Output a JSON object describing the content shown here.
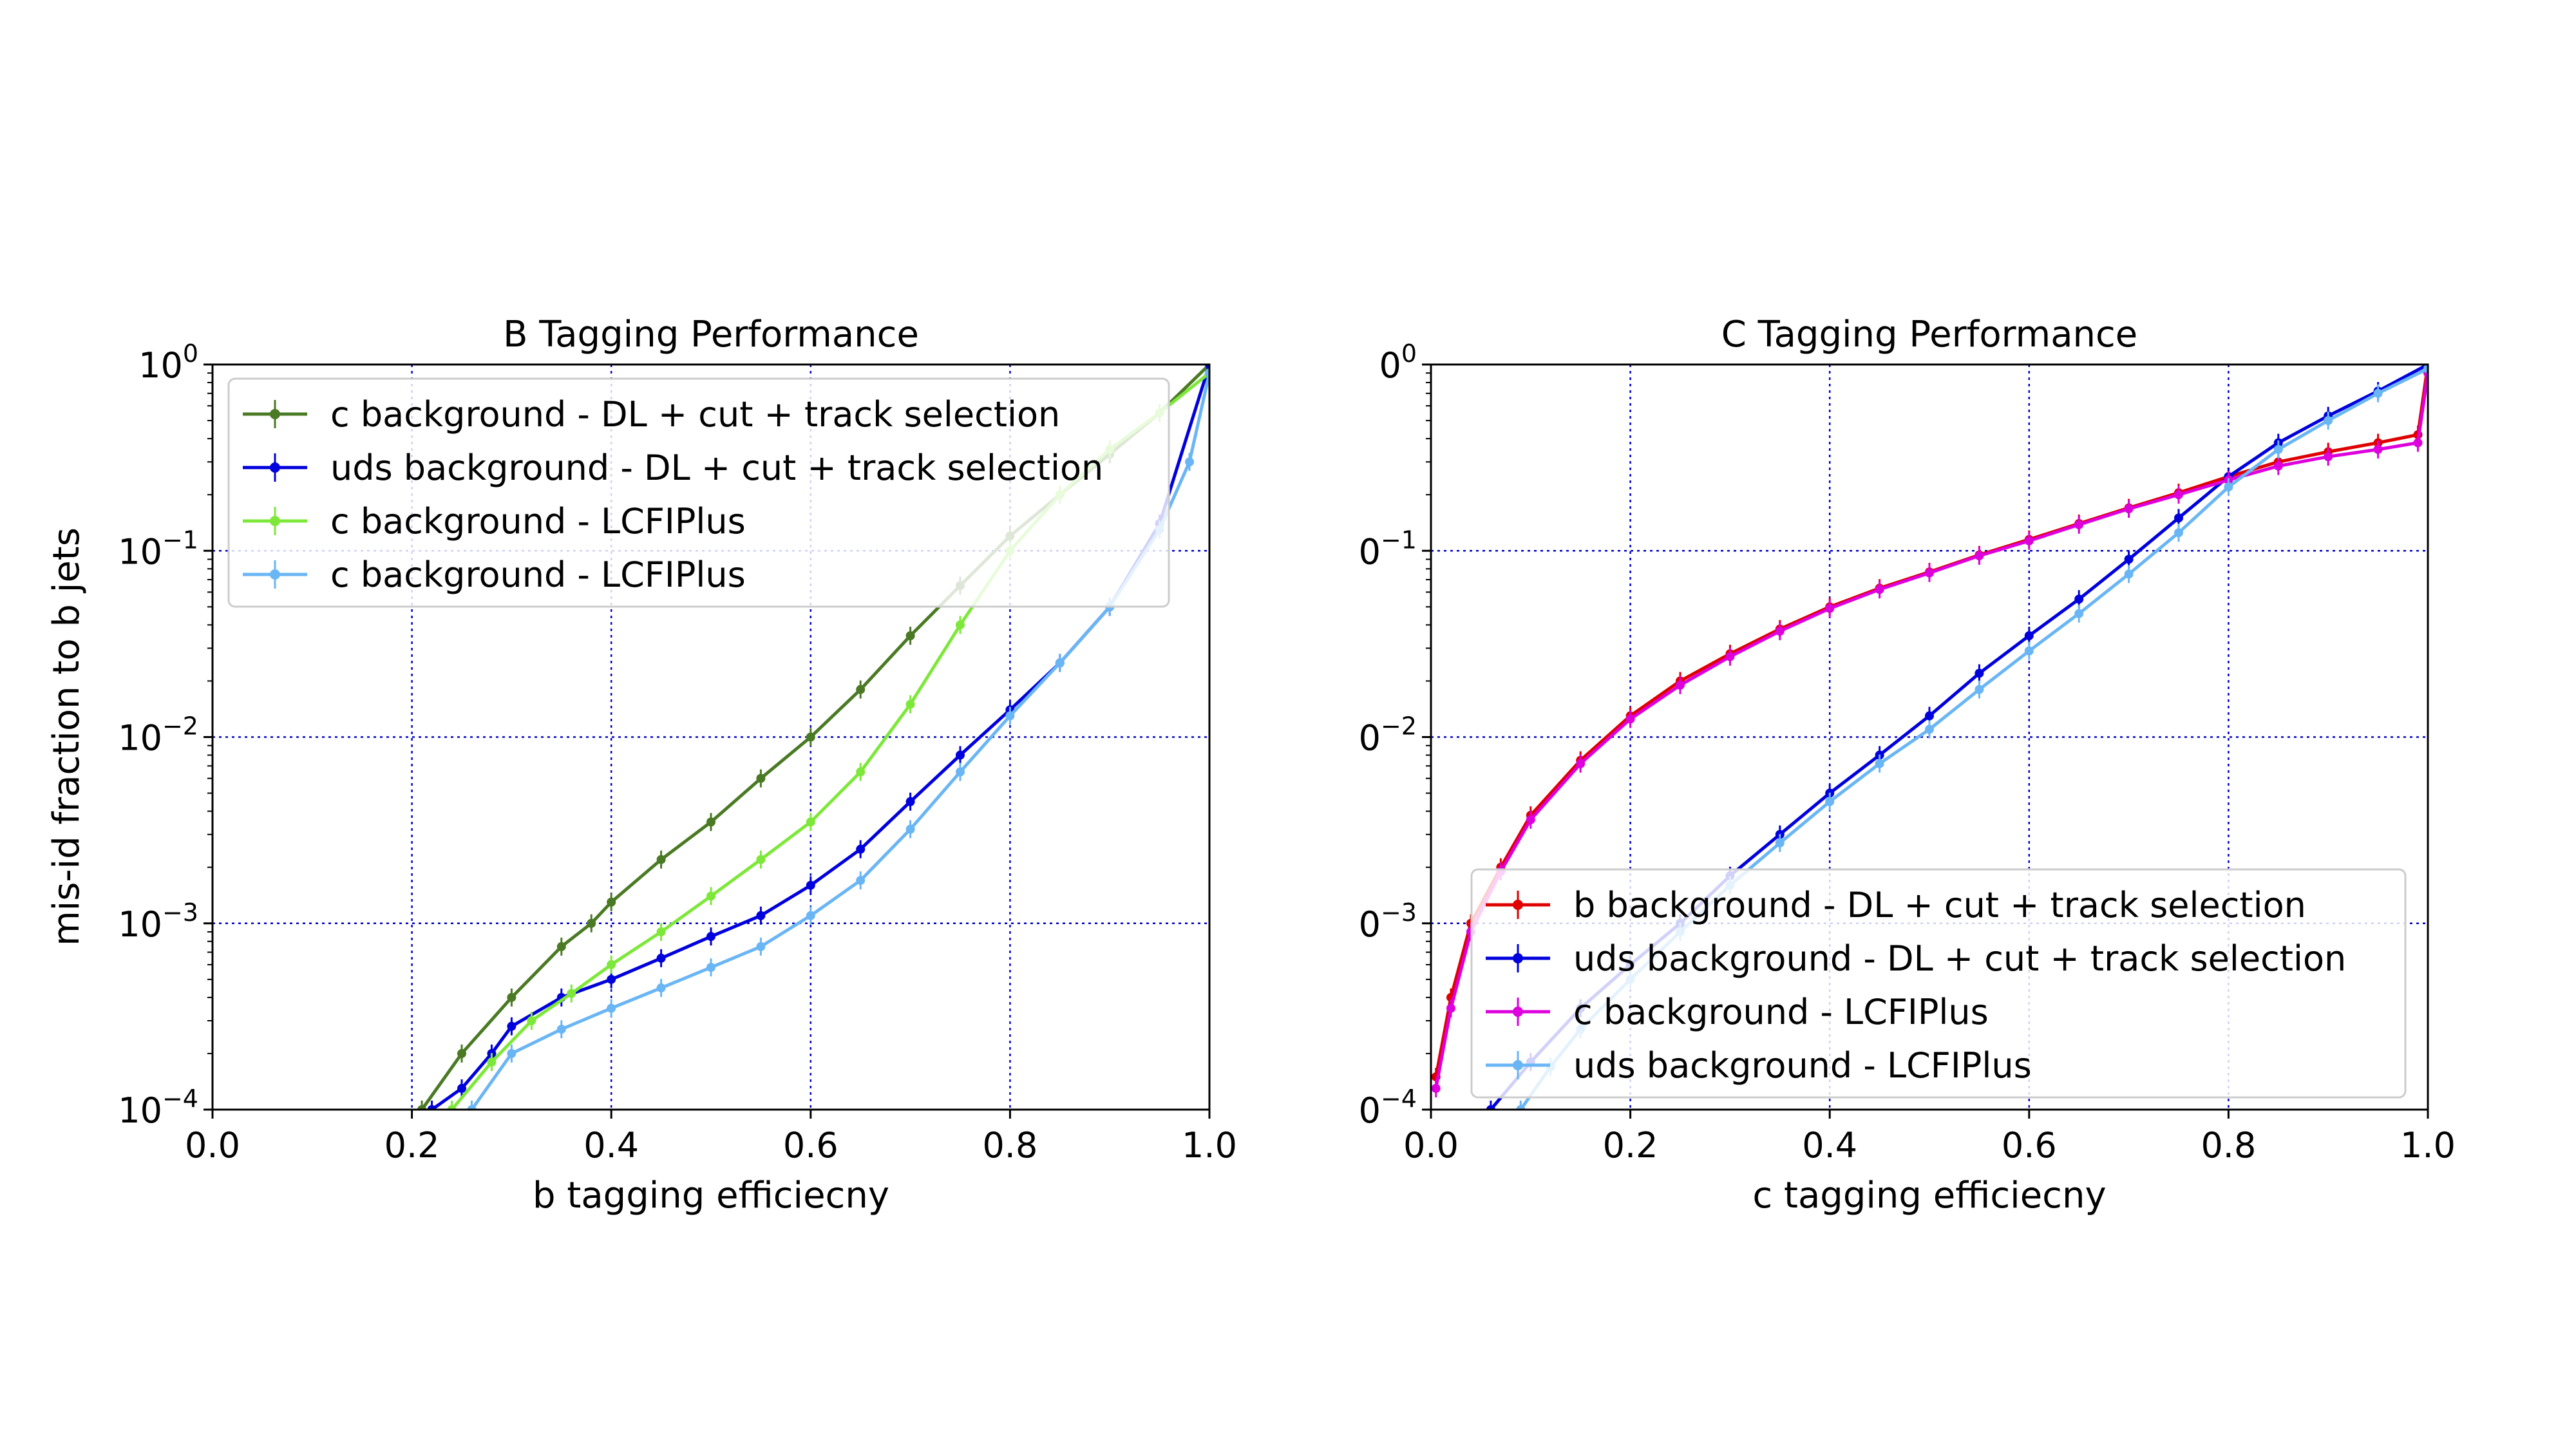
{
  "chart_data": [
    {
      "type": "line",
      "title": "B Tagging Performance",
      "xlabel": "b tagging efficiecny",
      "ylabel": "mis-id fraction to b jets",
      "xlim": [
        0.0,
        1.0
      ],
      "ylim": [
        0.0001,
        1
      ],
      "yscale": "log",
      "grid": true,
      "legend_position": "upper-left",
      "xticks": [
        "0.0",
        "0.2",
        "0.4",
        "0.6",
        "0.8",
        "1.0"
      ],
      "yticks": [
        {
          "base": "10",
          "exp": "0"
        },
        {
          "base": "10",
          "exp": "−1"
        },
        {
          "base": "10",
          "exp": "−2"
        },
        {
          "base": "10",
          "exp": "−3"
        },
        {
          "base": "10",
          "exp": "−4"
        }
      ],
      "series": [
        {
          "name": "c background - DL + cut + track selection",
          "color": "#4a7a23",
          "x": [
            0.21,
            0.25,
            0.3,
            0.35,
            0.38,
            0.4,
            0.45,
            0.5,
            0.55,
            0.6,
            0.65,
            0.7,
            0.75,
            0.8,
            0.85,
            0.9,
            0.95,
            1.0
          ],
          "y": [
            0.0001,
            0.0002,
            0.0004,
            0.00075,
            0.001,
            0.0013,
            0.0022,
            0.0035,
            0.006,
            0.01,
            0.018,
            0.035,
            0.065,
            0.12,
            0.2,
            0.33,
            0.55,
            1.0
          ]
        },
        {
          "name": "uds background - DL + cut + track selection",
          "color": "#0000dd",
          "x": [
            0.22,
            0.25,
            0.28,
            0.3,
            0.35,
            0.4,
            0.45,
            0.5,
            0.55,
            0.6,
            0.65,
            0.7,
            0.75,
            0.8,
            0.85,
            0.9,
            0.95,
            1.0
          ],
          "y": [
            0.0001,
            0.00013,
            0.0002,
            0.00028,
            0.0004,
            0.0005,
            0.00065,
            0.00085,
            0.0011,
            0.0016,
            0.0025,
            0.0045,
            0.008,
            0.014,
            0.025,
            0.05,
            0.14,
            1.0
          ]
        },
        {
          "name": "c background - LCFIPlus",
          "color": "#7ee83a",
          "x": [
            0.24,
            0.28,
            0.32,
            0.36,
            0.4,
            0.45,
            0.5,
            0.55,
            0.6,
            0.65,
            0.7,
            0.75,
            0.8,
            0.85,
            0.9,
            0.95,
            1.0
          ],
          "y": [
            0.0001,
            0.00018,
            0.0003,
            0.00042,
            0.0006,
            0.0009,
            0.0014,
            0.0022,
            0.0035,
            0.0065,
            0.015,
            0.04,
            0.1,
            0.2,
            0.35,
            0.55,
            0.9
          ]
        },
        {
          "name": "c background - LCFIPlus",
          "color": "#6ab6f5",
          "x": [
            0.26,
            0.3,
            0.35,
            0.4,
            0.45,
            0.5,
            0.55,
            0.6,
            0.65,
            0.7,
            0.75,
            0.8,
            0.85,
            0.9,
            0.95,
            0.98,
            1.0
          ],
          "y": [
            0.0001,
            0.0002,
            0.00027,
            0.00035,
            0.00045,
            0.00058,
            0.00075,
            0.0011,
            0.0017,
            0.0032,
            0.0065,
            0.013,
            0.025,
            0.05,
            0.13,
            0.3,
            0.9
          ]
        }
      ]
    },
    {
      "type": "line",
      "title": "C Tagging Performance",
      "xlabel": "c tagging efficiecny",
      "ylabel": "",
      "xlim": [
        0.0,
        1.0
      ],
      "ylim": [
        0.0001,
        1
      ],
      "yscale": "log",
      "grid": true,
      "legend_position": "lower-right",
      "xticks": [
        "0.0",
        "0.2",
        "0.4",
        "0.6",
        "0.8",
        "1.0"
      ],
      "yticks": [
        {
          "base": "0",
          "exp": "0"
        },
        {
          "base": "0",
          "exp": "−1"
        },
        {
          "base": "0",
          "exp": "−2"
        },
        {
          "base": "0",
          "exp": "−3"
        },
        {
          "base": "0",
          "exp": "−4"
        }
      ],
      "series": [
        {
          "name": "b background - DL + cut + track selection",
          "color": "#e00000",
          "x": [
            0.005,
            0.02,
            0.04,
            0.07,
            0.1,
            0.15,
            0.2,
            0.25,
            0.3,
            0.35,
            0.4,
            0.45,
            0.5,
            0.55,
            0.6,
            0.65,
            0.7,
            0.75,
            0.8,
            0.85,
            0.9,
            0.95,
            0.99,
            1.0
          ],
          "y": [
            0.00015,
            0.0004,
            0.001,
            0.002,
            0.0038,
            0.0075,
            0.013,
            0.02,
            0.028,
            0.038,
            0.05,
            0.063,
            0.077,
            0.095,
            0.115,
            0.14,
            0.17,
            0.205,
            0.25,
            0.3,
            0.34,
            0.38,
            0.42,
            1.0
          ]
        },
        {
          "name": "uds background - DL + cut + track selection",
          "color": "#0000dd",
          "x": [
            0.06,
            0.1,
            0.15,
            0.2,
            0.25,
            0.3,
            0.35,
            0.4,
            0.45,
            0.5,
            0.55,
            0.6,
            0.65,
            0.7,
            0.75,
            0.8,
            0.85,
            0.9,
            0.95,
            1.0
          ],
          "y": [
            0.0001,
            0.00018,
            0.00035,
            0.0006,
            0.001,
            0.0018,
            0.003,
            0.005,
            0.008,
            0.013,
            0.022,
            0.035,
            0.055,
            0.09,
            0.15,
            0.25,
            0.38,
            0.53,
            0.72,
            1.0
          ]
        },
        {
          "name": "c background - LCFIPlus",
          "color": "#dd00dd",
          "x": [
            0.005,
            0.02,
            0.04,
            0.07,
            0.1,
            0.15,
            0.2,
            0.25,
            0.3,
            0.35,
            0.4,
            0.45,
            0.5,
            0.55,
            0.6,
            0.65,
            0.7,
            0.75,
            0.8,
            0.85,
            0.9,
            0.95,
            0.99,
            1.0
          ],
          "y": [
            0.00013,
            0.00035,
            0.0009,
            0.0019,
            0.0036,
            0.0072,
            0.0125,
            0.019,
            0.027,
            0.037,
            0.049,
            0.062,
            0.076,
            0.094,
            0.113,
            0.138,
            0.168,
            0.2,
            0.24,
            0.285,
            0.32,
            0.35,
            0.38,
            0.9
          ]
        },
        {
          "name": "uds background - LCFIPlus",
          "color": "#6ab6f5",
          "x": [
            0.09,
            0.12,
            0.15,
            0.2,
            0.25,
            0.3,
            0.35,
            0.4,
            0.45,
            0.5,
            0.55,
            0.6,
            0.65,
            0.7,
            0.75,
            0.8,
            0.85,
            0.9,
            0.95,
            1.0
          ],
          "y": [
            0.0001,
            0.00017,
            0.00027,
            0.0005,
            0.0009,
            0.0016,
            0.0027,
            0.0045,
            0.0072,
            0.011,
            0.018,
            0.029,
            0.046,
            0.075,
            0.125,
            0.22,
            0.35,
            0.5,
            0.7,
            0.95
          ]
        }
      ]
    }
  ]
}
